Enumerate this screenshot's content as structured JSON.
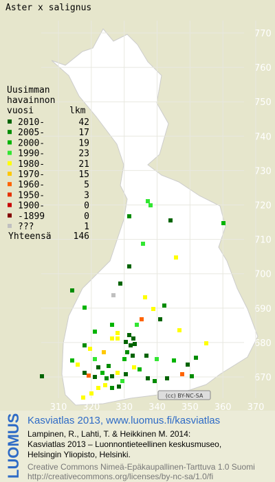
{
  "header": {
    "title": "Aster x salignus"
  },
  "legend": {
    "heading": [
      "Uusimman",
      "havainnon",
      "vuosi"
    ],
    "count_heading": "lkm",
    "rows": [
      {
        "label": "2010-",
        "count": 42,
        "color": "#006400"
      },
      {
        "label": "2005-",
        "count": 17,
        "color": "#008c00"
      },
      {
        "label": "2000-",
        "count": 19,
        "color": "#00b400"
      },
      {
        "label": "1990-",
        "count": 23,
        "color": "#32e632"
      },
      {
        "label": "1980-",
        "count": 21,
        "color": "#ffff00"
      },
      {
        "label": "1970-",
        "count": 15,
        "color": "#ffc800"
      },
      {
        "label": "1960-",
        "count": 5,
        "color": "#ff6400"
      },
      {
        "label": "1950-",
        "count": 3,
        "color": "#e63200"
      },
      {
        "label": "1900-",
        "count": 0,
        "color": "#c80000"
      },
      {
        "label": "-1899",
        "count": 0,
        "color": "#820000"
      },
      {
        "label": "???",
        "count": 1,
        "color": "#c0c0c0"
      }
    ],
    "total_label": "Yhteensä",
    "total": 146
  },
  "grid": {
    "yticks": [
      770,
      760,
      750,
      740,
      730,
      720,
      710,
      700,
      690,
      680,
      670
    ],
    "xticks": [
      310,
      320,
      330,
      340,
      350,
      360,
      370
    ]
  },
  "license_badge": "(cc) BY-NC-SA",
  "footer": {
    "logo": "LUOMUS",
    "link": "Kasviatlas 2013, www.luomus.fi/kasviatlas",
    "citation": [
      "Lampinen, R., Lahti, T. & Heikkinen M. 2014:",
      "Kasviatlas 2013 – Luonnontieteellinen keskusmuseo,",
      "Helsingin Yliopisto, Helsinki."
    ],
    "license": [
      "Creative Commons Nimeä-Epäkaupallinen-Tarttuva 1.0 Suomi",
      "http://creativecommons.org/licenses/by-nc-sa/1.0/fi"
    ]
  }
}
